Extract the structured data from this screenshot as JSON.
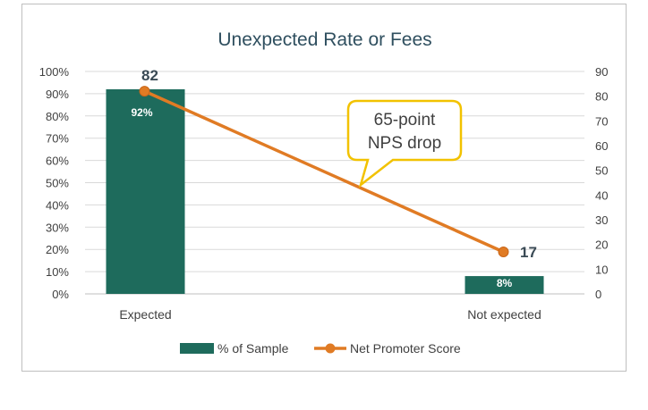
{
  "chart_data": {
    "type": "bar",
    "title": "Unexpected Rate or Fees",
    "categories": [
      "Expected",
      "Not expected"
    ],
    "series": [
      {
        "name": "% of Sample",
        "kind": "bar",
        "axis": "left",
        "values": [
          92,
          8
        ],
        "data_labels": [
          "92%",
          "8%"
        ],
        "color": "#1e6b5c"
      },
      {
        "name": "Net Promoter Score",
        "kind": "line",
        "axis": "right",
        "values": [
          82,
          17
        ],
        "data_labels": [
          "82",
          "17"
        ],
        "color": "#e07b24"
      }
    ],
    "left_axis": {
      "ylim": [
        0,
        100
      ],
      "ticks": [
        "0%",
        "10%",
        "20%",
        "30%",
        "40%",
        "50%",
        "60%",
        "70%",
        "80%",
        "90%",
        "100%"
      ]
    },
    "right_axis": {
      "ylim": [
        0,
        90
      ],
      "ticks": [
        "0",
        "10",
        "20",
        "30",
        "40",
        "50",
        "60",
        "70",
        "80",
        "90"
      ]
    },
    "grid": true,
    "legend_position": "bottom",
    "annotation": {
      "line1": "65-point",
      "line2": "NPS drop",
      "border_color": "#f2c200"
    }
  }
}
